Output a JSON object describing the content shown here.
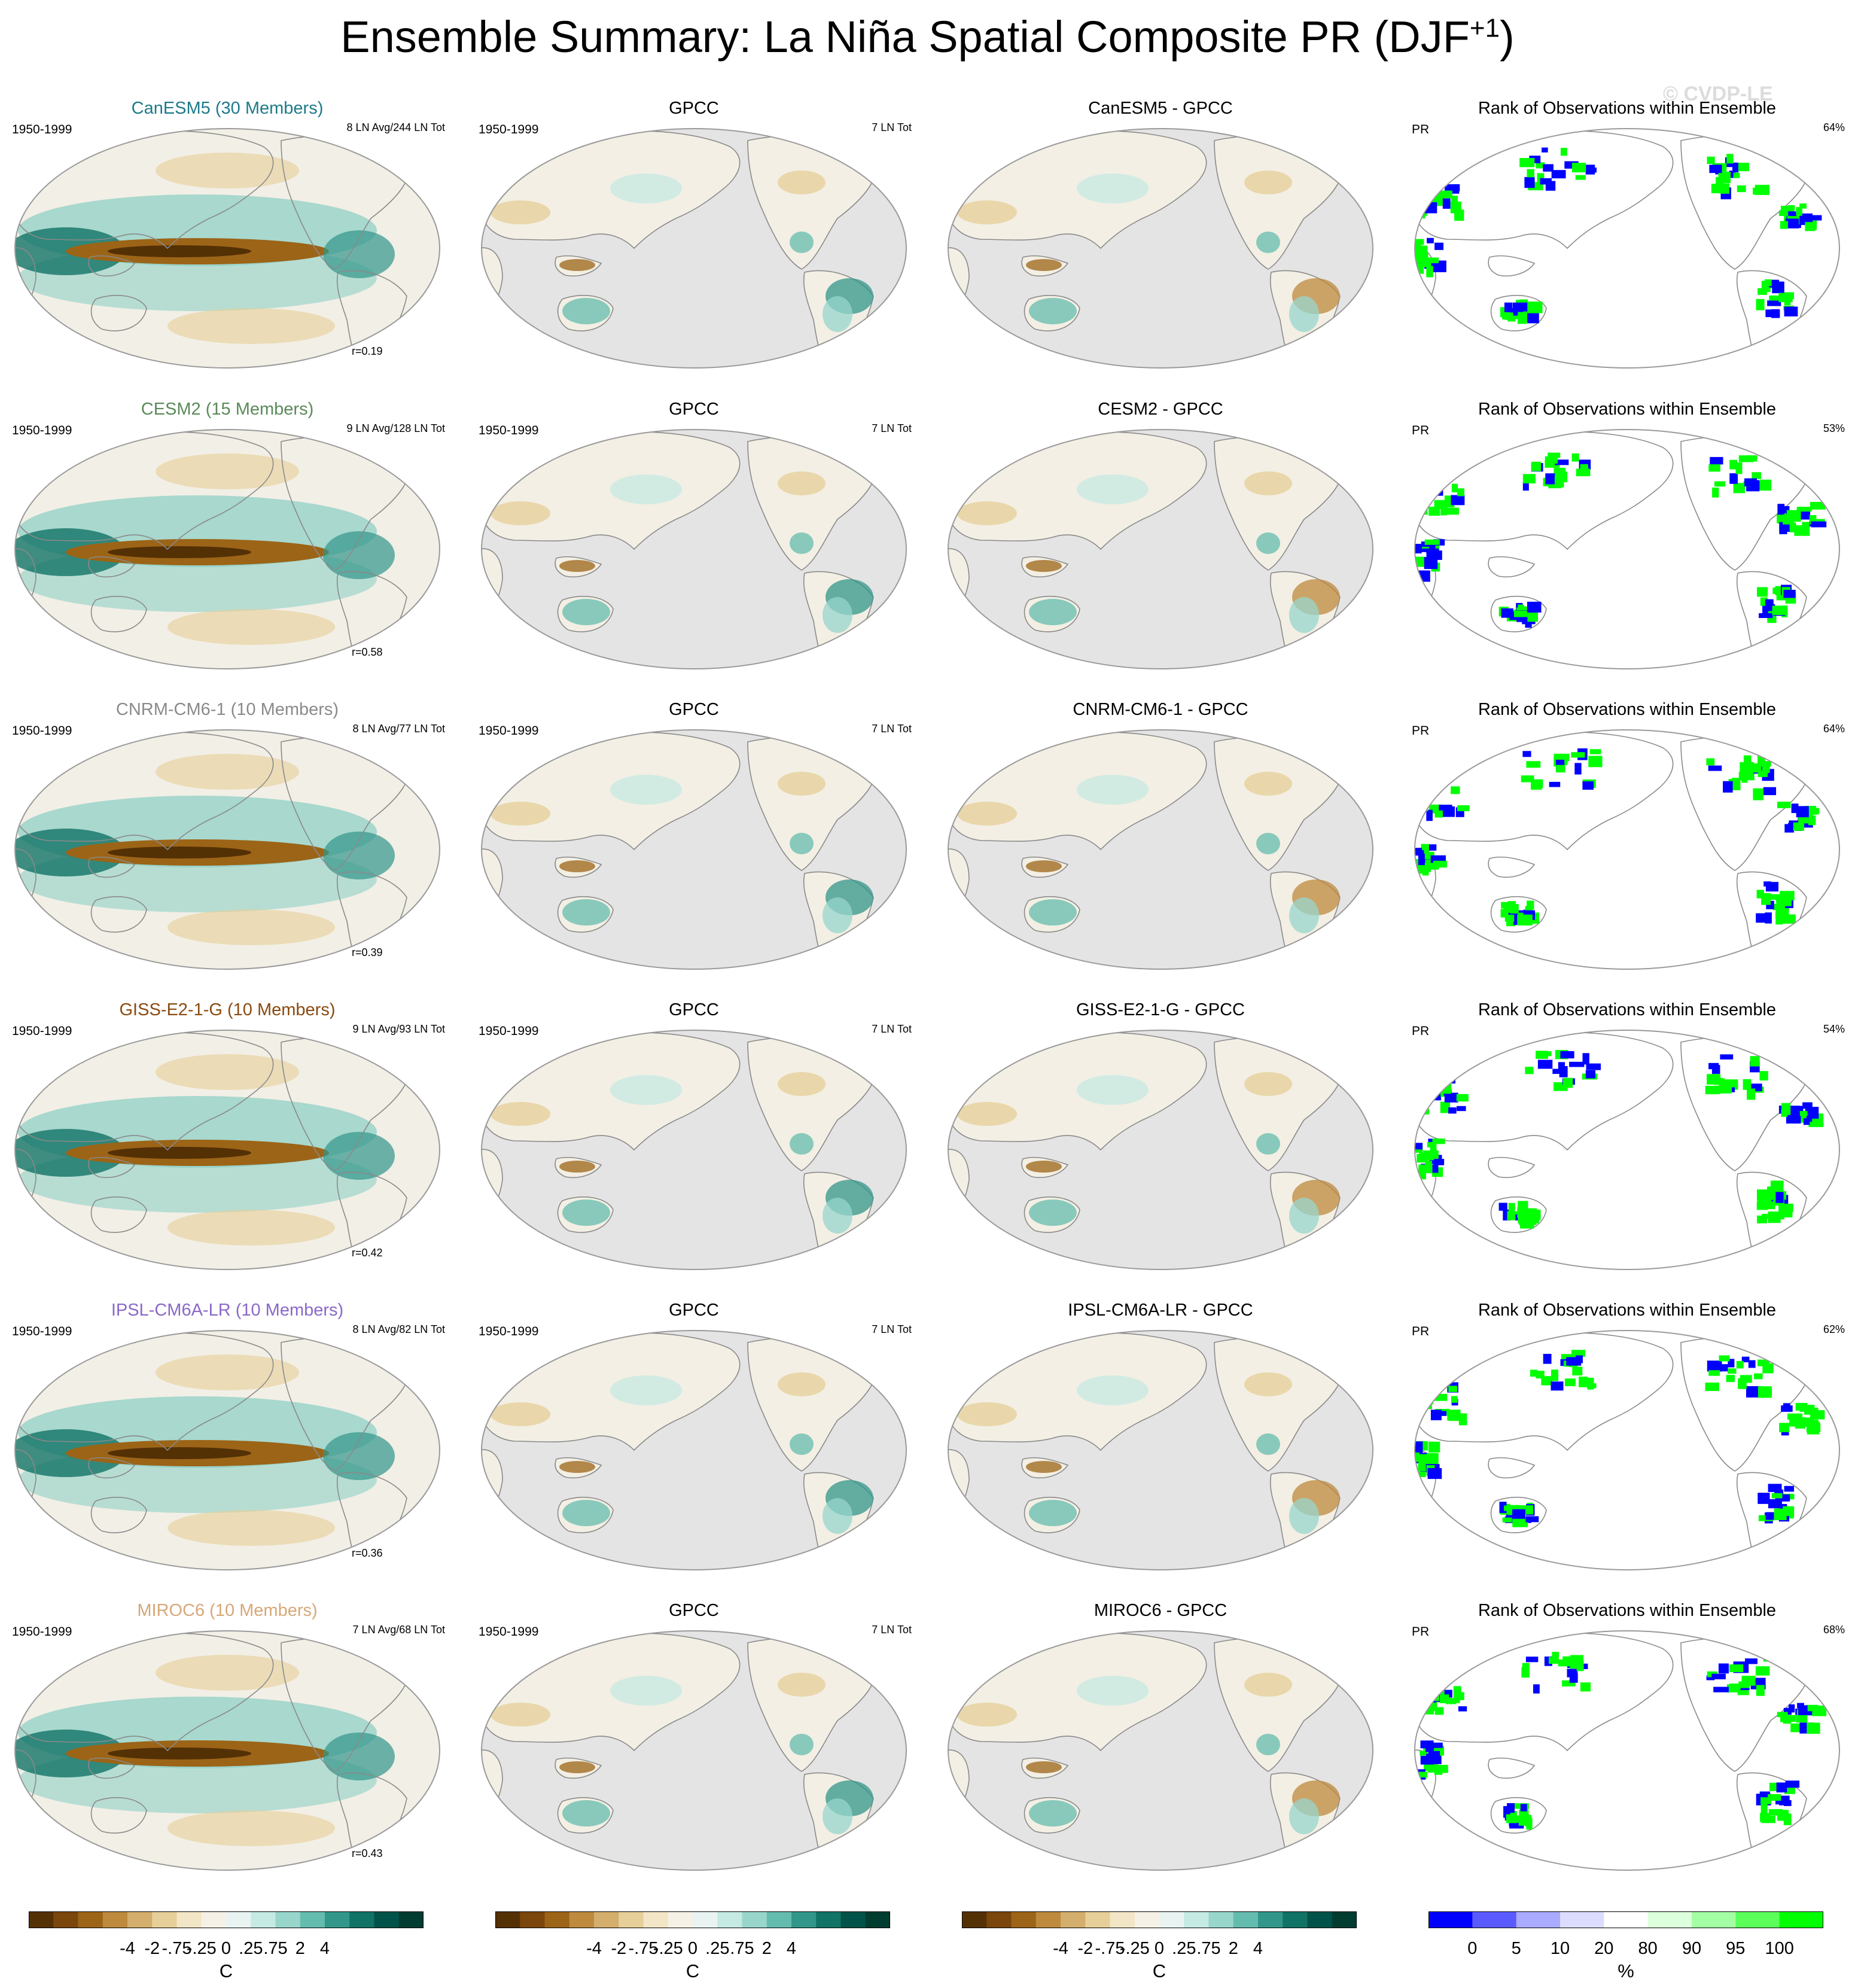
{
  "title": {
    "main": "Ensemble Summary: La Niña Spatial Composite PR (DJF",
    "sup": "+1",
    "close": ")"
  },
  "watermark": "© CVDP-LE",
  "chart_data": {
    "type": "heatmap",
    "projection": "Robinson (Pacific-centered)",
    "rows": [
      {
        "model": "CanESM5 (30 Members)",
        "model_color": "#1d7a8a",
        "years": "1950-1999",
        "events": "8 LN Avg/244 LN Tot",
        "r": "r=0.19",
        "obs_title": "GPCC",
        "obs_years": "1950-1999",
        "obs_events": "7 LN Tot",
        "diff_title": "CanESM5 - GPCC",
        "rank_title": "Rank of Observations within Ensemble",
        "rank_var": "PR",
        "rank_pct": "64%"
      },
      {
        "model": "CESM2 (15 Members)",
        "model_color": "#5a8a5a",
        "years": "1950-1999",
        "events": "9 LN Avg/128 LN Tot",
        "r": "r=0.58",
        "obs_title": "GPCC",
        "obs_years": "1950-1999",
        "obs_events": "7 LN Tot",
        "diff_title": "CESM2 - GPCC",
        "rank_title": "Rank of Observations within Ensemble",
        "rank_var": "PR",
        "rank_pct": "53%"
      },
      {
        "model": "CNRM-CM6-1 (10 Members)",
        "model_color": "#8a8a8a",
        "years": "1950-1999",
        "events": "8 LN Avg/77 LN Tot",
        "r": "r=0.39",
        "obs_title": "GPCC",
        "obs_years": "1950-1999",
        "obs_events": "7 LN Tot",
        "diff_title": "CNRM-CM6-1 - GPCC",
        "rank_title": "Rank of Observations within Ensemble",
        "rank_var": "PR",
        "rank_pct": "64%"
      },
      {
        "model": "GISS-E2-1-G (10 Members)",
        "model_color": "#8a4a10",
        "years": "1950-1999",
        "events": "9 LN Avg/93 LN Tot",
        "r": "r=0.42",
        "obs_title": "GPCC",
        "obs_years": "1950-1999",
        "obs_events": "7 LN Tot",
        "diff_title": "GISS-E2-1-G - GPCC",
        "rank_title": "Rank of Observations within Ensemble",
        "rank_var": "PR",
        "rank_pct": "54%"
      },
      {
        "model": "IPSL-CM6A-LR (10 Members)",
        "model_color": "#8a68c8",
        "years": "1950-1999",
        "events": "8 LN Avg/82 LN Tot",
        "r": "r=0.36",
        "obs_title": "GPCC",
        "obs_years": "1950-1999",
        "obs_events": "7 LN Tot",
        "diff_title": "IPSL-CM6A-LR - GPCC",
        "rank_title": "Rank of Observations within Ensemble",
        "rank_var": "PR",
        "rank_pct": "62%"
      },
      {
        "model": "MIROC6 (10 Members)",
        "model_color": "#d6a878",
        "years": "1950-1999",
        "events": "7 LN Avg/68 LN Tot",
        "r": "r=0.43",
        "obs_title": "GPCC",
        "obs_years": "1950-1999",
        "obs_events": "7 LN Tot",
        "diff_title": "MIROC6 - GPCC",
        "rank_title": "Rank of Observations within Ensemble",
        "rank_var": "PR",
        "rank_pct": "68%"
      }
    ],
    "colorbars": [
      {
        "unit": "C",
        "labels": [
          "-4",
          "-2",
          "-.75",
          "-.25",
          "0",
          ".25",
          ".75",
          "2",
          "4"
        ],
        "colors": [
          "#543005",
          "#7a460c",
          "#9c6417",
          "#bd8a3e",
          "#d3ae6c",
          "#e6cf98",
          "#f3e6c6",
          "#f6f1e6",
          "#e9f4f2",
          "#c5e9e3",
          "#98d6cc",
          "#64bcae",
          "#32968a",
          "#117366",
          "#015248",
          "#003c30"
        ]
      },
      {
        "unit": "C",
        "labels": [
          "-4",
          "-2",
          "-.75",
          "-.25",
          "0",
          ".25",
          ".75",
          "2",
          "4"
        ],
        "colors": [
          "#543005",
          "#7a460c",
          "#9c6417",
          "#bd8a3e",
          "#d3ae6c",
          "#e6cf98",
          "#f3e6c6",
          "#f6f1e6",
          "#e9f4f2",
          "#c5e9e3",
          "#98d6cc",
          "#64bcae",
          "#32968a",
          "#117366",
          "#015248",
          "#003c30"
        ]
      },
      {
        "unit": "C",
        "labels": [
          "-4",
          "-2",
          "-.75",
          "-.25",
          "0",
          ".25",
          ".75",
          "2",
          "4"
        ],
        "colors": [
          "#543005",
          "#7a460c",
          "#9c6417",
          "#bd8a3e",
          "#d3ae6c",
          "#e6cf98",
          "#f3e6c6",
          "#f6f1e6",
          "#e9f4f2",
          "#c5e9e3",
          "#98d6cc",
          "#64bcae",
          "#32968a",
          "#117366",
          "#015248",
          "#003c30"
        ]
      },
      {
        "unit": "%",
        "labels": [
          "0",
          "5",
          "10",
          "20",
          "80",
          "90",
          "95",
          "100"
        ],
        "colors": [
          "#0000ff",
          "#5a5aff",
          "#aaaaff",
          "#dcdcff",
          "#ffffff",
          "#dcffdc",
          "#a4ffa4",
          "#5aff5a",
          "#00ff00"
        ]
      }
    ]
  }
}
